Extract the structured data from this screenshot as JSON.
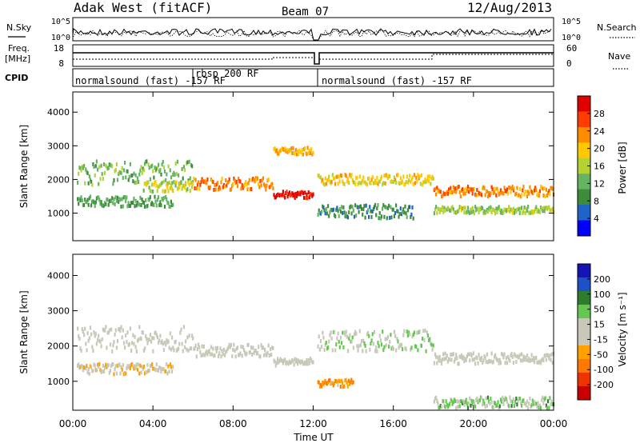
{
  "header": {
    "station": "Adak West (fitACF)",
    "beam": "Beam 07",
    "date": "12/Aug/2013"
  },
  "summary": {
    "nsky_label": "N.Sky",
    "nsearch_label": "N.Search",
    "freq_label_1": "Freq.",
    "freq_label_2": "[MHz]",
    "nave_label": "Nave",
    "cpid_label": "CPID",
    "nsky_ticks": [
      "10^5",
      "10^0"
    ],
    "nsearch_ticks": [
      "10^5",
      "10^0"
    ],
    "freq_ticks": [
      "18",
      "8"
    ],
    "nave_ticks": [
      "60",
      "0"
    ],
    "cpid_segments": [
      {
        "label": "normalsound (fast) -157 RF",
        "start_h": 0,
        "end_h": 6
      },
      {
        "label": "rbsp 200 RF",
        "start_h": 6,
        "end_h": 12
      },
      {
        "label": "normalsound (fast) -157 RF",
        "start_h": 12,
        "end_h": 24
      }
    ]
  },
  "colors": {
    "power": [
      "#0000ff",
      "#1e64c8",
      "#3c8c3c",
      "#64b464",
      "#b4d232",
      "#ffc800",
      "#ff8c00",
      "#ff3c00",
      "#e10000"
    ],
    "velocity": [
      "#1414b4",
      "#1e50c8",
      "#2d7d2d",
      "#64c850",
      "#c8c8b9",
      "#c8c8b9",
      "#ffa000",
      "#ff7800",
      "#f03200",
      "#c80000"
    ]
  },
  "chart_data": [
    {
      "type": "heatmap",
      "title": "",
      "xlabel": "Time UT",
      "ylabel": "Slant Range [km]",
      "xlim": [
        0,
        24
      ],
      "ylim": [
        180,
        4600
      ],
      "x_ticks": [
        "00:00",
        "04:00",
        "08:00",
        "12:00",
        "16:00",
        "20:00",
        "00:00"
      ],
      "y_ticks": [
        1000,
        2000,
        3000,
        4000
      ],
      "colorbar_label": "Power [dB]",
      "colorbar_ticks": [
        "4",
        "8",
        "12",
        "16",
        "20",
        "24",
        "28"
      ],
      "range": [
        0,
        30
      ],
      "bands": [
        {
          "t0": 0.2,
          "t1": 6.0,
          "r0": 1900,
          "r1": 2600,
          "v": 12
        },
        {
          "t0": 0.2,
          "t1": 5.0,
          "r0": 1250,
          "r1": 1550,
          "v": 10
        },
        {
          "t0": 3.5,
          "t1": 6.0,
          "r0": 1700,
          "r1": 2000,
          "v": 16
        },
        {
          "t0": 6.0,
          "t1": 10.0,
          "r0": 1750,
          "r1": 2100,
          "v": 22
        },
        {
          "t0": 10.0,
          "t1": 12.0,
          "r0": 1500,
          "r1": 1700,
          "v": 28
        },
        {
          "t0": 10.0,
          "t1": 12.0,
          "r0": 2800,
          "r1": 3000,
          "v": 20
        },
        {
          "t0": 12.2,
          "t1": 18.0,
          "r0": 1900,
          "r1": 2200,
          "v": 18
        },
        {
          "t0": 12.2,
          "t1": 17.0,
          "r0": 900,
          "r1": 1300,
          "v": 8
        },
        {
          "t0": 18.0,
          "t1": 24.0,
          "r0": 1550,
          "r1": 1850,
          "v": 22
        },
        {
          "t0": 18.0,
          "t1": 24.0,
          "r0": 1050,
          "r1": 1250,
          "v": 14
        }
      ]
    },
    {
      "type": "heatmap",
      "title": "",
      "xlabel": "Time UT",
      "ylabel": "Slant Range [km]",
      "xlim": [
        0,
        24
      ],
      "ylim": [
        180,
        4600
      ],
      "x_ticks": [
        "00:00",
        "04:00",
        "08:00",
        "12:00",
        "16:00",
        "20:00",
        "00:00"
      ],
      "y_ticks": [
        1000,
        2000,
        3000,
        4000
      ],
      "colorbar_label": "Velocity [m s⁻¹]",
      "colorbar_ticks": [
        "200",
        "100",
        "50",
        "15",
        "-15",
        "-50",
        "-100",
        "-200"
      ],
      "range": [
        -250,
        250
      ],
      "bands": [
        {
          "t0": 0.2,
          "t1": 6.0,
          "r0": 1900,
          "r1": 2600,
          "v": 0
        },
        {
          "t0": 0.2,
          "t1": 5.0,
          "r0": 1250,
          "r1": 1550,
          "v": -30
        },
        {
          "t0": 6.0,
          "t1": 10.0,
          "r0": 1750,
          "r1": 2100,
          "v": 0
        },
        {
          "t0": 10.0,
          "t1": 12.0,
          "r0": 1500,
          "r1": 1700,
          "v": 0
        },
        {
          "t0": 12.2,
          "t1": 18.0,
          "r0": 1900,
          "r1": 2500,
          "v": 40
        },
        {
          "t0": 12.2,
          "t1": 14.0,
          "r0": 900,
          "r1": 1100,
          "v": -90
        },
        {
          "t0": 18.0,
          "t1": 24.0,
          "r0": 1550,
          "r1": 1850,
          "v": 0
        },
        {
          "t0": 18.0,
          "t1": 24.0,
          "r0": 300,
          "r1": 600,
          "v": 60
        }
      ]
    }
  ]
}
